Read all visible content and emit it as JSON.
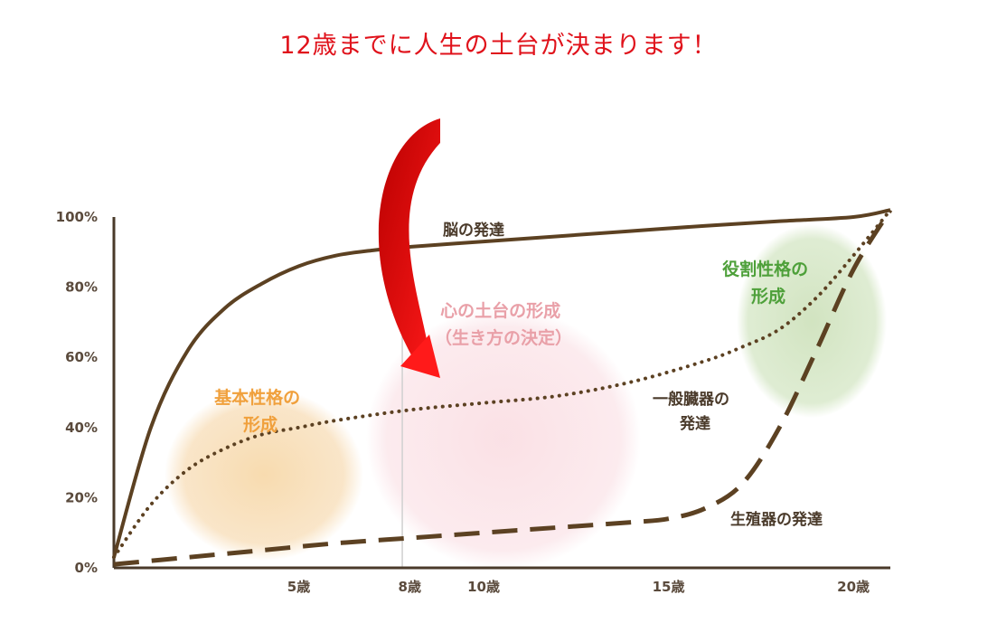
{
  "headline": "12歳までに人生の土台が決まります！",
  "chart_data": {
    "type": "line",
    "x_range": [
      0,
      21
    ],
    "y_range": [
      0,
      100
    ],
    "y_ticks": [
      "0%",
      "20%",
      "40%",
      "60%",
      "80%",
      "100%"
    ],
    "y_tick_values": [
      0,
      20,
      40,
      60,
      80,
      100
    ],
    "x_ticks": [
      "5歳",
      "8歳",
      "10歳",
      "15歳",
      "20歳"
    ],
    "x_tick_values": [
      5,
      8,
      10,
      15,
      20
    ],
    "marker_line_x": 7.8,
    "series": [
      {
        "name": "脳の発達",
        "style": "solid",
        "x": [
          0,
          1,
          2,
          3,
          4,
          5,
          6,
          7,
          8,
          10,
          12,
          14,
          16,
          18,
          20,
          21
        ],
        "y": [
          3,
          40,
          62,
          74,
          81,
          86,
          89,
          90.5,
          91.5,
          93,
          94.5,
          96,
          97.5,
          98.8,
          100,
          102
        ]
      },
      {
        "name": "一般臓器の発達",
        "style": "dotted",
        "x": [
          0,
          1,
          2,
          3,
          4,
          5,
          6,
          8,
          10,
          12,
          14,
          16,
          17,
          18,
          19,
          20,
          21
        ],
        "y": [
          3,
          18,
          28,
          34,
          38,
          40,
          42,
          45,
          47,
          49,
          53,
          59,
          63,
          68,
          77,
          89,
          102
        ]
      },
      {
        "name": "生殖器の発達",
        "style": "dashed",
        "x": [
          0,
          2,
          4,
          6,
          8,
          10,
          12,
          14,
          15,
          16,
          17,
          18,
          19,
          20,
          21
        ],
        "y": [
          1,
          3,
          5,
          7,
          8.5,
          10,
          11.5,
          13,
          14,
          17,
          24,
          40,
          62,
          85,
          102
        ]
      }
    ],
    "regions": [
      {
        "label_lines": [
          "基本性格の",
          "形成"
        ],
        "color": "#f7dcb2",
        "label_color": "#f0a03c"
      },
      {
        "label_lines": [
          "心の土台の形成",
          "（生き方の決定）"
        ],
        "color": "#fbe3e6",
        "label_color": "#e9a0a8"
      },
      {
        "label_lines": [
          "役割性格の",
          "形成"
        ],
        "color": "#d6e6c6",
        "label_color": "#4ea03a"
      }
    ],
    "series_labels": {
      "brain": [
        "脳の発達"
      ],
      "general": [
        "一般臓器の",
        "発達"
      ],
      "repro": [
        "生殖器の発達"
      ]
    },
    "colors": {
      "line": "#5c4122",
      "axis": "#4a3a2a",
      "arrow": "#e0121b"
    }
  }
}
